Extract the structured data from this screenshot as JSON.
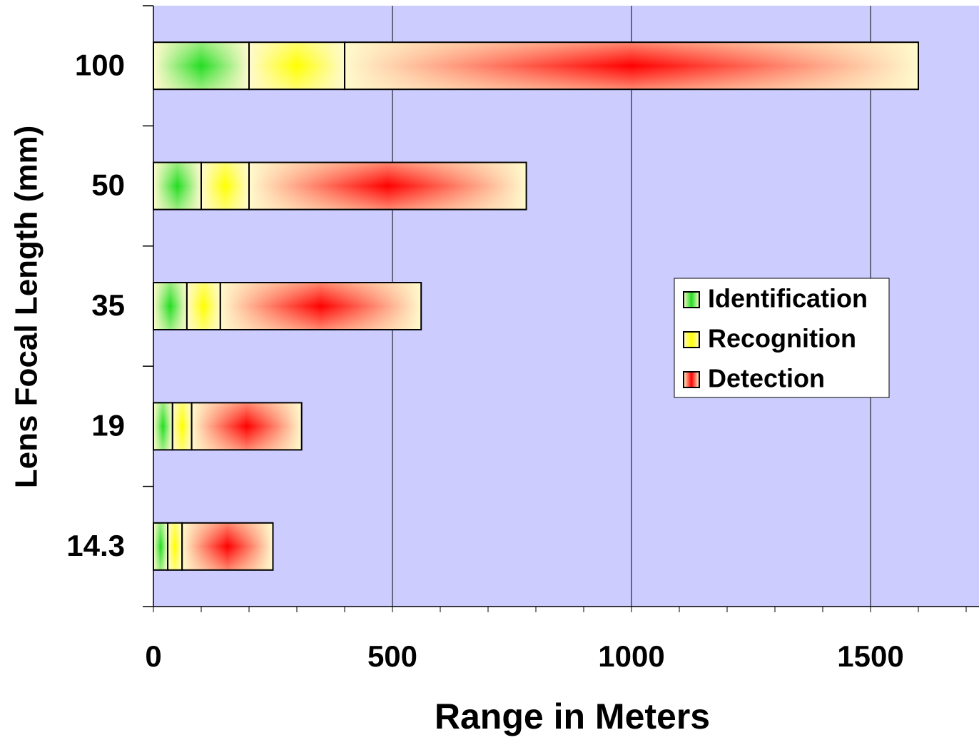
{
  "chart_data": {
    "type": "stacked-barh",
    "x_label": "Range in Meters",
    "y_label": "Lens Focal Length (mm)",
    "categories": [
      "100",
      "50",
      "35",
      "19",
      "14.3"
    ],
    "series": [
      {
        "name": "Identification",
        "color": "#22dd22",
        "values": [
          200,
          100,
          70,
          40,
          30
        ]
      },
      {
        "name": "Recognition",
        "color": "#ffff00",
        "values": [
          200,
          100,
          70,
          40,
          30
        ]
      },
      {
        "name": "Detection",
        "color": "#ff0000",
        "values": [
          1200,
          580,
          420,
          230,
          190
        ]
      }
    ],
    "xlim": [
      0,
      1750
    ],
    "xticks": [
      0,
      500,
      1000,
      1500
    ],
    "xminor_ticks": [
      0,
      100,
      200,
      300,
      400,
      500,
      600,
      700,
      800,
      900,
      1000,
      1100,
      1200,
      1300,
      1400,
      1500,
      1600,
      1700
    ],
    "grid": true,
    "legend": "right"
  }
}
